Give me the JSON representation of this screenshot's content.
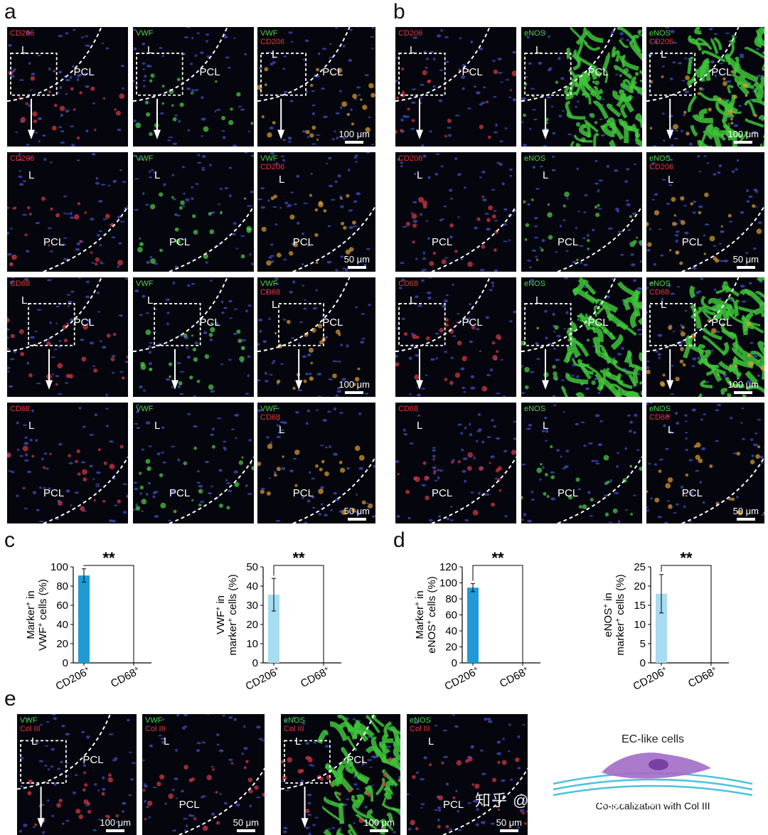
{
  "panels": {
    "a": "a",
    "b": "b",
    "c": "c",
    "d": "d",
    "e": "e"
  },
  "markers": {
    "cd206": "CD206",
    "cd68": "CD68",
    "vwf": "VWF",
    "enos": "eNOS",
    "col3": "Col III",
    "lumen": "L",
    "pcl": "PCL",
    "scale100": "100 μm",
    "scale50": "50 μm"
  },
  "chart_data": [
    {
      "id": "c1",
      "type": "bar",
      "categories": [
        "CD206",
        "CD68"
      ],
      "values": [
        91,
        0
      ],
      "errors": [
        7,
        0
      ],
      "ylabel_line1": "Marker",
      "ylabel_sup1": "+",
      "ylabel_mid": " in",
      "ylabel_line2": "VWF",
      "ylabel_sup2": "+",
      "ylabel_end": " cells (%)",
      "ylim": [
        0,
        100
      ],
      "ticks": [
        "0",
        "20",
        "40",
        "60",
        "80",
        "100"
      ],
      "significance": "**",
      "color": "#1f9ad6"
    },
    {
      "id": "c2",
      "type": "bar",
      "categories": [
        "CD206",
        "CD68"
      ],
      "values": [
        35.5,
        0
      ],
      "errors": [
        8.5,
        0
      ],
      "ylabel_line1": "VWF",
      "ylabel_sup1": "+",
      "ylabel_mid": " in",
      "ylabel_line2": "marker",
      "ylabel_sup2": "+",
      "ylabel_end": " cells (%)",
      "ylim": [
        0,
        50
      ],
      "ticks": [
        "0",
        "10",
        "20",
        "30",
        "40",
        "50"
      ],
      "significance": "**",
      "color": "#a7dcf2"
    },
    {
      "id": "d1",
      "type": "bar",
      "categories": [
        "CD206",
        "CD68"
      ],
      "values": [
        94,
        0
      ],
      "errors": [
        5,
        0
      ],
      "ylabel_line1": "Marker",
      "ylabel_sup1": "+",
      "ylabel_mid": " in",
      "ylabel_line2": "eNOS",
      "ylabel_sup2": "+",
      "ylabel_end": " cells (%)",
      "ylim": [
        0,
        120
      ],
      "ticks": [
        "0",
        "20",
        "40",
        "60",
        "80",
        "100",
        "120"
      ],
      "significance": "**",
      "color": "#1f9ad6"
    },
    {
      "id": "d2",
      "type": "bar",
      "categories": [
        "CD206",
        "CD68"
      ],
      "values": [
        18,
        0
      ],
      "errors": [
        5,
        0
      ],
      "ylabel_line1": "eNOS",
      "ylabel_sup1": "+",
      "ylabel_mid": " in",
      "ylabel_line2": "marker",
      "ylabel_sup2": "+",
      "ylabel_end": " cells (%)",
      "ylim": [
        0,
        25
      ],
      "ticks": [
        "0",
        "5",
        "10",
        "15",
        "20",
        "25"
      ],
      "significance": "**",
      "color": "#a7dcf2"
    }
  ],
  "tick_suffix": "+",
  "schematic": {
    "title": "EC-like cells",
    "caption": "Co-localization with Col III"
  },
  "watermark": "知乎 @EngineeringForLife"
}
